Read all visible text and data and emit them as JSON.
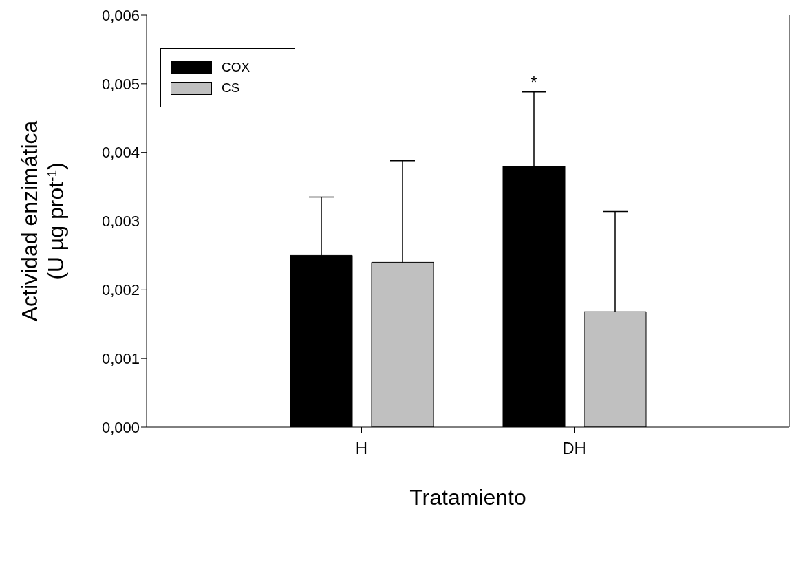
{
  "chart_data": {
    "type": "bar",
    "xlabel": "Tratamiento",
    "ylabel": "Actividad enzimática\n(U µg prot$^{-1}$)",
    "categories": [
      "H",
      "DH"
    ],
    "series": [
      {
        "name": "COX",
        "color": "#000000",
        "values": [
          0.0025,
          0.0038
        ],
        "errors": [
          [
            0.0025,
            0.00335
          ],
          [
            0.0038,
            0.00488
          ]
        ]
      },
      {
        "name": "CS",
        "color": "#c0c0c0",
        "values": [
          0.0024,
          0.00168
        ],
        "errors": [
          [
            0.0024,
            0.00388
          ],
          [
            0.00168,
            0.00314
          ]
        ]
      }
    ],
    "ylim": [
      0,
      0.006
    ],
    "yticks": [
      {
        "value": 0,
        "label": "0,000"
      },
      {
        "value": 0.001,
        "label": "0,001"
      },
      {
        "value": 0.002,
        "label": "0,002"
      },
      {
        "value": 0.003,
        "label": "0,003"
      },
      {
        "value": 0.004,
        "label": "0,004"
      },
      {
        "value": 0.005,
        "label": "0,005"
      },
      {
        "value": 0.006,
        "label": "0,006"
      }
    ],
    "annotations": [
      "*"
    ],
    "legend": "top left",
    "grid": false
  }
}
